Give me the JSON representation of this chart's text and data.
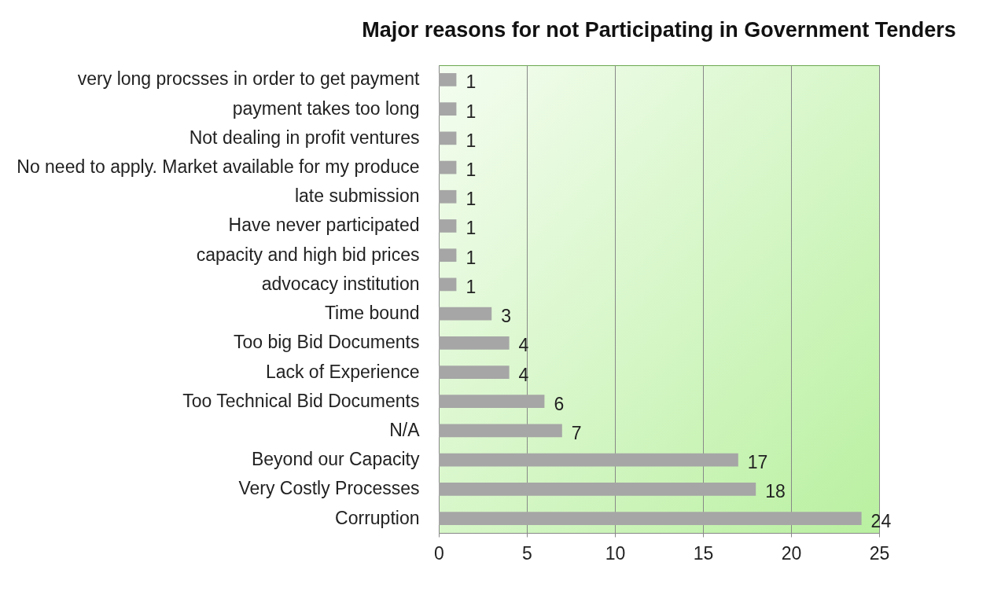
{
  "chart_data": {
    "type": "bar",
    "orientation": "horizontal",
    "title": "Major reasons for not Participating in Government Tenders",
    "categories": [
      "very long procsses in order to get payment",
      "payment takes too long",
      "Not dealing in profit ventures",
      "No need to apply. Market available for my produce",
      "late submission",
      "Have never participated",
      "capacity and high bid prices",
      "advocacy institution",
      "Time bound",
      "Too big Bid Documents",
      "Lack of Experience",
      "Too Technical Bid Documents",
      "N/A",
      "Beyond our Capacity",
      "Very Costly Processes",
      "Corruption"
    ],
    "values": [
      1,
      1,
      1,
      1,
      1,
      1,
      1,
      1,
      3,
      4,
      4,
      6,
      7,
      17,
      18,
      24
    ],
    "color": "#a6a6a6",
    "xlim": [
      0,
      25
    ],
    "xticks": [
      0,
      5,
      10,
      15,
      20,
      25
    ],
    "grid": "x",
    "data_labels": true
  }
}
